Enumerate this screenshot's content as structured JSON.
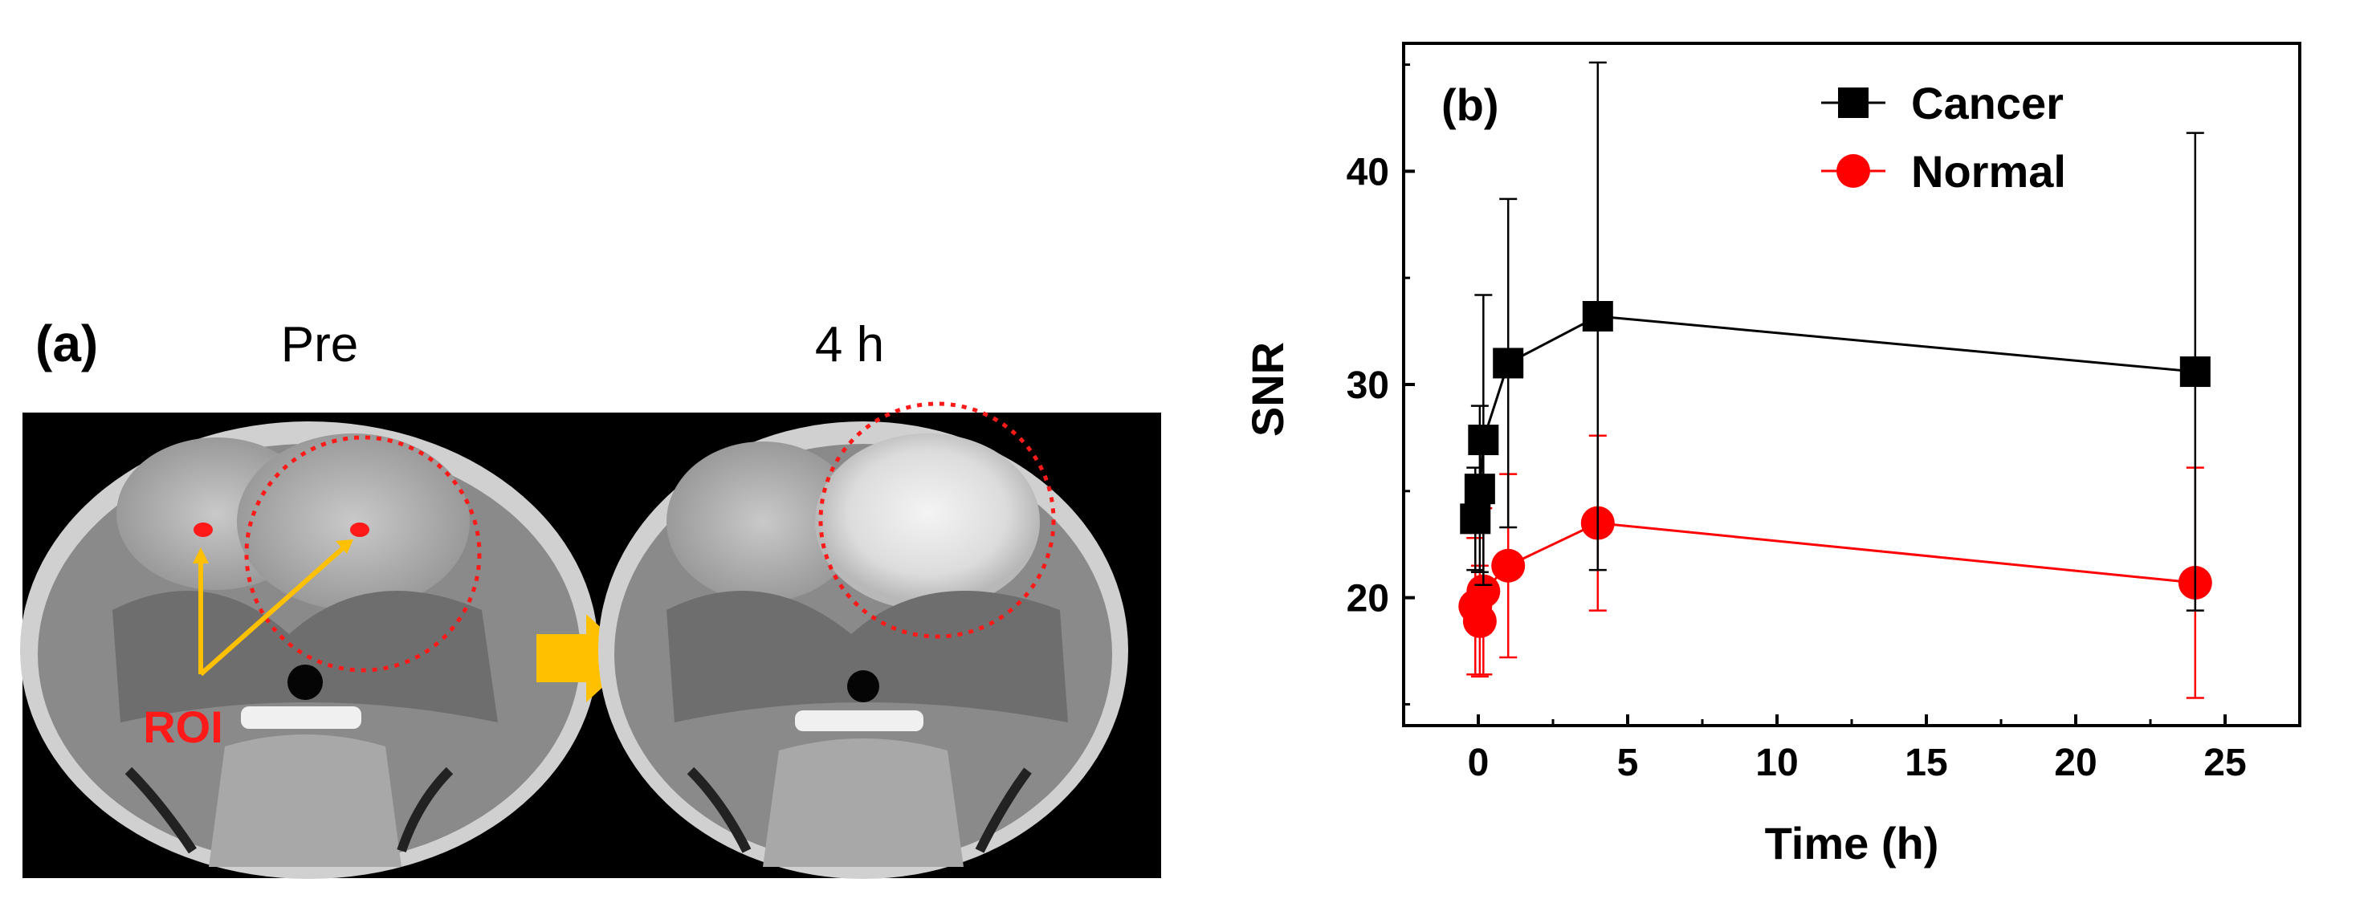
{
  "panel_a": {
    "label": "(a)",
    "image_labels": [
      "Pre",
      "4 h"
    ],
    "roi_label": "ROI",
    "colors": {
      "roi": "#ff1a1a",
      "arrow": "#ffc000",
      "background": "#000000"
    }
  },
  "chart_data": {
    "type": "line",
    "panel_label": "(b)",
    "title": "",
    "xlabel": "Time (h)",
    "ylabel": "SNR",
    "xlim": [
      -2.5,
      27.5
    ],
    "ylim": [
      14,
      46
    ],
    "xticks": [
      0,
      5,
      10,
      15,
      20,
      25
    ],
    "yticks": [
      20,
      30,
      40
    ],
    "grid": false,
    "legend_position": "top-right",
    "series": [
      {
        "name": "Cancer",
        "color": "#000000",
        "marker": "square",
        "x": [
          -0.1,
          0.05,
          0.17,
          1,
          4,
          24
        ],
        "y": [
          23.7,
          25.1,
          27.4,
          31.0,
          33.2,
          30.6
        ],
        "err": [
          2.4,
          3.9,
          6.8,
          7.7,
          11.9,
          11.2
        ]
      },
      {
        "name": "Normal",
        "color": "#ff0000",
        "marker": "circle",
        "x": [
          -0.1,
          0.05,
          0.17,
          1,
          4,
          24
        ],
        "y": [
          19.6,
          18.9,
          20.3,
          21.5,
          23.5,
          20.7
        ],
        "err": [
          3.2,
          2.6,
          3.9,
          4.3,
          4.1,
          5.4
        ]
      }
    ]
  }
}
